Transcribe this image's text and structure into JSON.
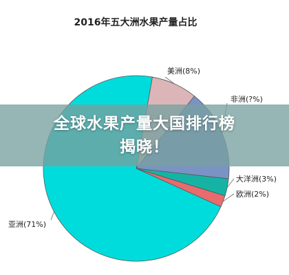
{
  "chart_data": {
    "type": "pie",
    "title": "2016年五大洲水果产量占比",
    "slices": [
      {
        "label": "美洲(8%)",
        "value": 8,
        "color": "#dbb5b8"
      },
      {
        "label": "非洲(?%)",
        "value": 16,
        "color": "#7a93c4"
      },
      {
        "label": "大洋洲(3%)",
        "value": 3,
        "color": "#16b3a5"
      },
      {
        "label": "欧洲(2%)",
        "value": 2,
        "color": "#e86b6e"
      },
      {
        "label": "亚洲(71%)",
        "value": 71,
        "color": "#00dcdc"
      }
    ]
  },
  "banner": {
    "line1": "全球水果产量大国排行榜",
    "line2": "揭晓！"
  }
}
